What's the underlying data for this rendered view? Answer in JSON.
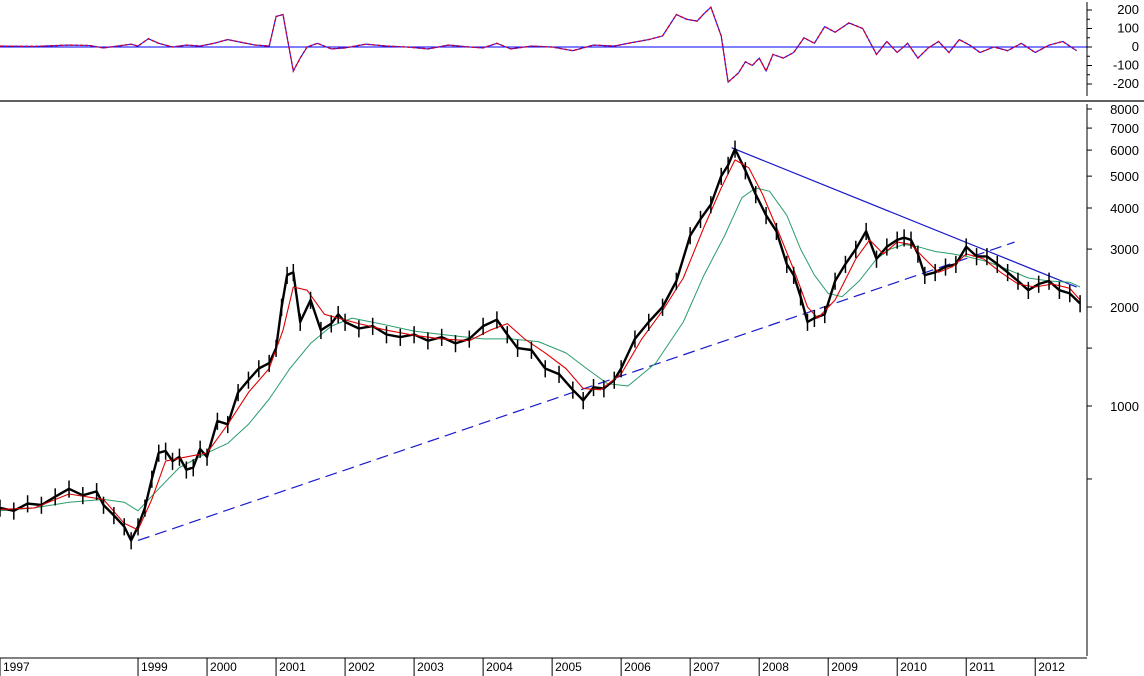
{
  "chart_data": [
    {
      "type": "line",
      "panel": "oscillator",
      "title": "",
      "xlabel": "",
      "ylabel": "",
      "ylim": [
        -245,
        245
      ],
      "y_ticks": [
        {
          "value": 200,
          "label": "200"
        },
        {
          "value": 100,
          "label": "100"
        },
        {
          "value": 0,
          "label": "0"
        },
        {
          "value": -100,
          "label": "-100"
        },
        {
          "value": -200,
          "label": "-200"
        }
      ],
      "zero_line": 0,
      "colors": {
        "oscillator": "#cc0033",
        "signal": "#1a1aff",
        "zero_line": "#0000ff"
      },
      "series": [
        {
          "key": "oscillator",
          "x": [
            1997.0,
            1997.5,
            1998.0,
            1998.3,
            1998.5,
            1998.7,
            1998.9,
            1999.0,
            1999.15,
            1999.3,
            1999.5,
            1999.7,
            1999.9,
            2000.1,
            2000.3,
            2000.5,
            2000.7,
            2000.9,
            2001.0,
            2001.1,
            2001.25,
            2001.35,
            2001.45,
            2001.6,
            2001.8,
            2002.0,
            2002.3,
            2002.6,
            2002.9,
            2003.2,
            2003.5,
            2003.8,
            2004.0,
            2004.2,
            2004.4,
            2004.7,
            2005.0,
            2005.3,
            2005.6,
            2005.9,
            2006.1,
            2006.4,
            2006.6,
            2006.8,
            2006.95,
            2007.1,
            2007.2,
            2007.3,
            2007.45,
            2007.55,
            2007.7,
            2007.8,
            2007.9,
            2008.0,
            2008.1,
            2008.2,
            2008.35,
            2008.5,
            2008.65,
            2008.8,
            2008.95,
            2009.1,
            2009.3,
            2009.5,
            2009.7,
            2009.85,
            2010.0,
            2010.15,
            2010.3,
            2010.45,
            2010.6,
            2010.75,
            2010.9,
            2011.05,
            2011.2,
            2011.4,
            2011.6,
            2011.8,
            2012.0,
            2012.2,
            2012.4,
            2012.6
          ],
          "values": [
            5,
            3,
            10,
            8,
            -5,
            5,
            15,
            5,
            45,
            20,
            0,
            10,
            5,
            20,
            40,
            25,
            10,
            5,
            165,
            175,
            -130,
            -60,
            0,
            20,
            -10,
            -5,
            15,
            5,
            0,
            -10,
            10,
            0,
            -5,
            20,
            -10,
            5,
            0,
            -20,
            10,
            5,
            20,
            40,
            60,
            175,
            150,
            140,
            180,
            215,
            60,
            -190,
            -140,
            -80,
            -100,
            -60,
            -130,
            -40,
            -60,
            -30,
            50,
            20,
            110,
            80,
            130,
            100,
            -40,
            30,
            -30,
            20,
            -60,
            -5,
            30,
            -30,
            40,
            10,
            -30,
            0,
            -20,
            20,
            -30,
            10,
            30,
            -20
          ]
        }
      ]
    },
    {
      "type": "line",
      "panel": "price",
      "title": "",
      "xlabel": "",
      "ylabel": "",
      "y_scale": "log",
      "ylim": [
        330,
        9000
      ],
      "y_ticks": [
        {
          "value": 8000,
          "label": "8000"
        },
        {
          "value": 7000,
          "label": "7000"
        },
        {
          "value": 6000,
          "label": "6000"
        },
        {
          "value": 5000,
          "label": "5000"
        },
        {
          "value": 4000,
          "label": "4000"
        },
        {
          "value": 3000,
          "label": "3000"
        },
        {
          "value": 2000,
          "label": "2000"
        },
        {
          "value": 1500,
          "label": ""
        },
        {
          "value": 1000,
          "label": "1000"
        },
        {
          "value": 600,
          "label": ""
        }
      ],
      "x_ticks": [
        {
          "value": 1997,
          "label": "1997"
        },
        {
          "value": 1999,
          "label": "1999"
        },
        {
          "value": 2000,
          "label": "2000"
        },
        {
          "value": 2001,
          "label": "2001"
        },
        {
          "value": 2002,
          "label": "2002"
        },
        {
          "value": 2003,
          "label": "2003"
        },
        {
          "value": 2004,
          "label": "2004"
        },
        {
          "value": 2005,
          "label": "2005"
        },
        {
          "value": 2006,
          "label": "2006"
        },
        {
          "value": 2007,
          "label": "2007"
        },
        {
          "value": 2008,
          "label": "2008"
        },
        {
          "value": 2009,
          "label": "2009"
        },
        {
          "value": 2010,
          "label": "2010"
        },
        {
          "value": 2011,
          "label": "2011"
        },
        {
          "value": 2012,
          "label": "2012"
        }
      ],
      "xlim": [
        1997.0,
        2012.75
      ],
      "colors": {
        "price": "#000000",
        "short_ma": "#e00000",
        "long_ma": "#2a9d6a",
        "trendline": "#1a1acc"
      },
      "series": [
        {
          "key": "price",
          "x": [
            1997.0,
            1997.2,
            1997.4,
            1997.6,
            1997.8,
            1998.0,
            1998.2,
            1998.4,
            1998.5,
            1998.65,
            1998.8,
            1998.9,
            1999.0,
            1999.1,
            1999.2,
            1999.3,
            1999.4,
            1999.5,
            1999.6,
            1999.7,
            1999.8,
            1999.9,
            2000.0,
            2000.15,
            2000.3,
            2000.45,
            2000.6,
            2000.75,
            2000.9,
            2001.0,
            2001.08,
            2001.16,
            2001.25,
            2001.35,
            2001.5,
            2001.65,
            2001.8,
            2001.9,
            2002.0,
            2002.2,
            2002.4,
            2002.6,
            2002.8,
            2003.0,
            2003.2,
            2003.4,
            2003.6,
            2003.8,
            2004.0,
            2004.2,
            2004.35,
            2004.5,
            2004.7,
            2004.9,
            2005.1,
            2005.3,
            2005.45,
            2005.6,
            2005.75,
            2005.9,
            2006.0,
            2006.2,
            2006.4,
            2006.6,
            2006.8,
            2007.0,
            2007.15,
            2007.3,
            2007.45,
            2007.55,
            2007.65,
            2007.8,
            2007.95,
            2008.1,
            2008.25,
            2008.4,
            2008.5,
            2008.6,
            2008.7,
            2008.8,
            2008.95,
            2009.1,
            2009.25,
            2009.4,
            2009.55,
            2009.7,
            2009.85,
            2010.0,
            2010.1,
            2010.2,
            2010.3,
            2010.4,
            2010.55,
            2010.7,
            2010.85,
            2011.0,
            2011.15,
            2011.3,
            2011.45,
            2011.6,
            2011.75,
            2011.9,
            2012.05,
            2012.2,
            2012.35,
            2012.5,
            2012.65
          ],
          "values": [
            490,
            480,
            505,
            500,
            530,
            560,
            535,
            550,
            500,
            465,
            430,
            390,
            430,
            490,
            600,
            720,
            730,
            680,
            700,
            640,
            650,
            740,
            700,
            900,
            880,
            1100,
            1200,
            1300,
            1350,
            1500,
            2000,
            2500,
            2550,
            1800,
            2100,
            1700,
            1780,
            1900,
            1800,
            1720,
            1750,
            1650,
            1620,
            1650,
            1580,
            1620,
            1550,
            1600,
            1750,
            1830,
            1650,
            1500,
            1480,
            1300,
            1250,
            1120,
            1040,
            1140,
            1130,
            1200,
            1300,
            1600,
            1800,
            2000,
            2400,
            3300,
            3700,
            4100,
            5000,
            5400,
            6050,
            5200,
            4400,
            3800,
            3400,
            2700,
            2500,
            2150,
            1800,
            1850,
            1900,
            2400,
            2700,
            3000,
            3400,
            2800,
            3050,
            3200,
            3250,
            3200,
            2900,
            2500,
            2550,
            2650,
            2700,
            3050,
            2850,
            2850,
            2700,
            2550,
            2400,
            2250,
            2350,
            2400,
            2250,
            2200,
            2050
          ]
        },
        {
          "key": "short_ma",
          "x": [
            1997.0,
            1997.5,
            1998.0,
            1998.5,
            1998.8,
            1999.0,
            1999.2,
            1999.4,
            1999.7,
            2000.0,
            2000.3,
            2000.6,
            2000.9,
            2001.1,
            2001.25,
            2001.45,
            2001.7,
            2001.9,
            2002.2,
            2002.6,
            2003.0,
            2003.4,
            2003.8,
            2004.1,
            2004.35,
            2004.6,
            2004.9,
            2005.2,
            2005.45,
            2005.7,
            2006.0,
            2006.3,
            2006.6,
            2006.9,
            2007.2,
            2007.45,
            2007.65,
            2007.85,
            2008.05,
            2008.3,
            2008.5,
            2008.7,
            2008.85,
            2009.1,
            2009.4,
            2009.6,
            2009.8,
            2010.0,
            2010.2,
            2010.4,
            2010.6,
            2010.8,
            2011.0,
            2011.25,
            2011.5,
            2011.75,
            2012.0,
            2012.25,
            2012.5,
            2012.65
          ],
          "values": [
            485,
            490,
            540,
            520,
            440,
            420,
            520,
            680,
            700,
            720,
            880,
            1100,
            1300,
            1700,
            2300,
            2250,
            1900,
            1850,
            1780,
            1700,
            1640,
            1600,
            1580,
            1700,
            1780,
            1600,
            1450,
            1300,
            1130,
            1120,
            1250,
            1600,
            1950,
            2450,
            3500,
            4600,
            5600,
            5300,
            4400,
            3300,
            2600,
            2000,
            1850,
            2100,
            2800,
            3200,
            2900,
            3150,
            3100,
            2800,
            2550,
            2650,
            2900,
            2800,
            2550,
            2350,
            2300,
            2350,
            2280,
            2100
          ]
        },
        {
          "key": "long_ma",
          "x": [
            1997.0,
            1997.5,
            1998.0,
            1998.5,
            1998.8,
            1999.0,
            1999.3,
            1999.6,
            2000.0,
            2000.3,
            2000.6,
            2000.9,
            2001.2,
            2001.5,
            2001.8,
            2002.1,
            2002.5,
            2003.0,
            2003.5,
            2004.0,
            2004.4,
            2004.8,
            2005.2,
            2005.5,
            2005.8,
            2006.1,
            2006.5,
            2006.9,
            2007.2,
            2007.5,
            2007.75,
            2007.95,
            2008.15,
            2008.4,
            2008.6,
            2008.8,
            2009.0,
            2009.2,
            2009.45,
            2009.7,
            2009.9,
            2010.1,
            2010.3,
            2010.55,
            2010.8,
            2011.0,
            2011.3,
            2011.6,
            2011.9,
            2012.2,
            2012.5,
            2012.65
          ],
          "values": [
            480,
            490,
            510,
            520,
            510,
            480,
            560,
            650,
            720,
            770,
            880,
            1050,
            1300,
            1550,
            1750,
            1850,
            1780,
            1690,
            1640,
            1600,
            1600,
            1570,
            1450,
            1300,
            1170,
            1150,
            1350,
            1800,
            2500,
            3300,
            4300,
            4600,
            4500,
            3800,
            3000,
            2500,
            2200,
            2150,
            2400,
            2800,
            3000,
            3100,
            3050,
            2950,
            2900,
            2850,
            2750,
            2600,
            2450,
            2400,
            2380,
            2300
          ]
        }
      ],
      "trendlines": [
        {
          "style": "solid",
          "points": [
            [
              2007.6,
              6100
            ],
            [
              2012.6,
              2300
            ]
          ]
        },
        {
          "style": "dashed",
          "points": [
            [
              1999.0,
              390
            ],
            [
              2011.7,
              3150
            ]
          ]
        }
      ]
    }
  ]
}
